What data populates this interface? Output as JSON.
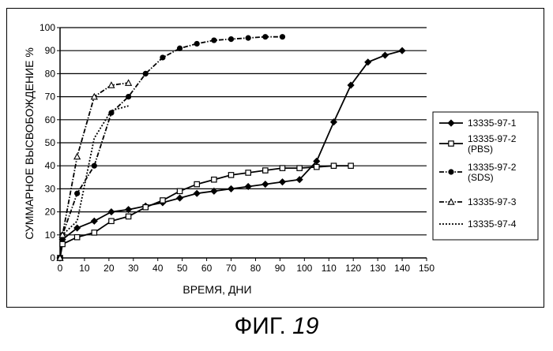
{
  "caption": {
    "prefix": "ФИГ.",
    "number": "19"
  },
  "chart_data": {
    "type": "line",
    "title": "",
    "xlabel": "ВРЕМЯ, ДНИ",
    "ylabel": "СУММАРНОЕ ВЫСВОБОЖДЕНИЕ %",
    "xlim": [
      0,
      150
    ],
    "ylim": [
      0,
      100
    ],
    "xticks": [
      0,
      10,
      20,
      30,
      40,
      50,
      60,
      70,
      80,
      90,
      100,
      110,
      120,
      130,
      140,
      150
    ],
    "yticks": [
      0,
      10,
      20,
      30,
      40,
      50,
      60,
      70,
      80,
      90,
      100
    ],
    "grid": "horizontal",
    "legend": "right",
    "series": [
      {
        "name": "13335-97-1",
        "marker": "diamond",
        "dash": "solid",
        "x": [
          0,
          1,
          7,
          14,
          21,
          28,
          35,
          42,
          49,
          56,
          63,
          70,
          77,
          84,
          91,
          98,
          105,
          112,
          119,
          126,
          133,
          140
        ],
        "y": [
          0,
          8,
          13,
          16,
          20,
          21,
          22.5,
          24,
          26,
          28,
          29,
          30,
          31,
          32,
          33,
          34,
          42,
          59,
          75,
          85,
          88,
          90
        ]
      },
      {
        "name": "13335-97-2 (PBS)",
        "marker": "square",
        "dash": "solid",
        "x": [
          0,
          1,
          7,
          14,
          21,
          28,
          35,
          42,
          49,
          56,
          63,
          70,
          77,
          84,
          91,
          98,
          105,
          112,
          119
        ],
        "y": [
          0,
          6,
          9,
          11,
          16,
          18,
          22,
          25,
          29,
          32,
          34,
          36,
          37,
          38,
          39,
          39,
          39.5,
          40,
          40
        ]
      },
      {
        "name": "13335-97-2 (SDS)",
        "marker": "circle",
        "dash": "dashdot",
        "x": [
          0,
          1,
          7,
          14,
          21,
          28,
          35,
          42,
          49,
          56,
          63,
          70,
          77,
          84,
          91
        ],
        "y": [
          0,
          10,
          28,
          40,
          63,
          70,
          80,
          87,
          91,
          93,
          94.5,
          95,
          95.5,
          96,
          96
        ]
      },
      {
        "name": "13335-97-3",
        "marker": "triangle",
        "dash": "dashdot",
        "x": [
          0,
          1,
          7,
          14,
          21,
          28
        ],
        "y": [
          0,
          10,
          44,
          70,
          75,
          76
        ]
      },
      {
        "name": "13335-97-4",
        "marker": "none",
        "dash": "dotted",
        "x": [
          0,
          1,
          7,
          14,
          21,
          28
        ],
        "y": [
          0,
          10,
          16,
          52,
          64,
          66
        ]
      }
    ]
  }
}
